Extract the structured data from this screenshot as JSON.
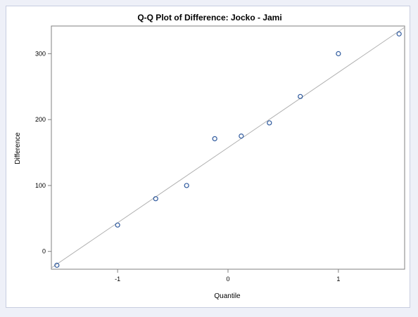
{
  "chart_data": {
    "type": "scatter",
    "title": "Q-Q Plot of Difference: Jocko - Jami",
    "xlabel": "Quantile",
    "ylabel": "Difference",
    "xlim": [
      -1.6,
      1.6
    ],
    "ylim": [
      -27,
      342
    ],
    "xticks": [
      -1,
      0,
      1
    ],
    "xtick_labels": [
      "-1",
      "0",
      "1"
    ],
    "yticks": [
      0,
      100,
      200,
      300
    ],
    "ytick_labels": [
      "0",
      "100",
      "200",
      "300"
    ],
    "grid": false,
    "legend": "none",
    "points": {
      "x": [
        -1.55,
        -1.0,
        -0.655,
        -0.375,
        -0.12,
        0.12,
        0.375,
        0.655,
        1.0,
        1.55
      ],
      "y": [
        -21,
        40,
        80,
        100,
        171,
        175,
        195,
        235,
        300,
        330
      ]
    },
    "reference_line": {
      "x": [
        -1.6,
        1.6
      ],
      "y": [
        -25,
        340
      ]
    },
    "colors": {
      "marker": "#2f5a9e",
      "reference_line": "#b0b0b0",
      "axis": "#808080",
      "background": "#ffffff",
      "outer": "#eef0f8"
    }
  }
}
